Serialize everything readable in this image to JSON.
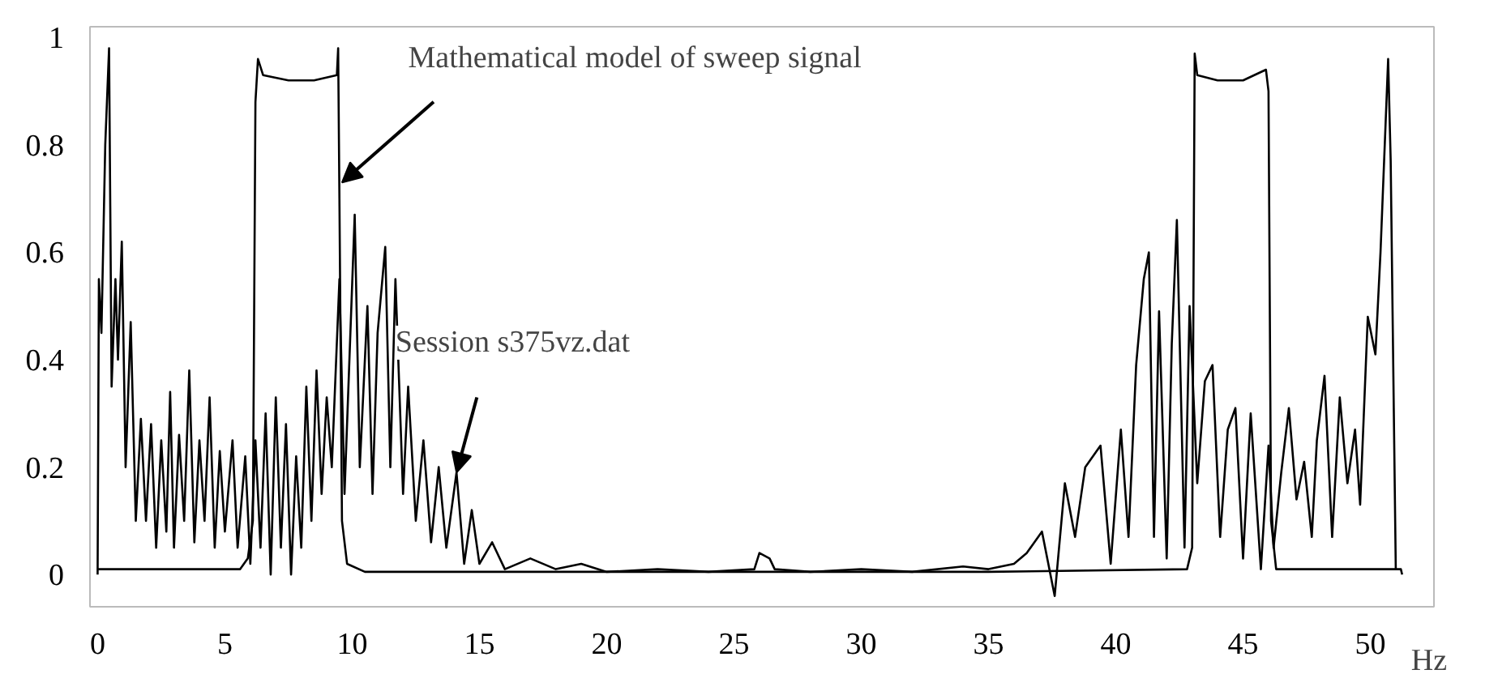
{
  "chart_data": {
    "type": "line",
    "xlabel": "Hz",
    "xlim": [
      -0.3,
      52.5
    ],
    "ylim": [
      -0.06,
      1.02
    ],
    "xticks": [
      0,
      5,
      10,
      15,
      20,
      25,
      30,
      35,
      40,
      45,
      50
    ],
    "yticks": [
      0,
      0.2,
      0.4,
      0.6,
      0.8,
      1
    ],
    "grid": false,
    "marker": "none",
    "line_style": "solid",
    "series": [
      {
        "color": "#000000",
        "x": [
          0.0,
          5.6,
          5.9,
          6.1,
          6.2,
          6.3,
          6.5,
          7.5,
          8.5,
          9.4,
          9.45,
          9.5,
          9.6,
          9.8,
          10.5,
          20,
          35,
          42.8,
          43.0,
          43.1,
          43.2,
          44,
          45,
          45.9,
          46.0,
          46.1,
          46.3,
          51.2,
          51.25
        ],
        "values": [
          0.01,
          0.01,
          0.03,
          0.1,
          0.88,
          0.96,
          0.93,
          0.92,
          0.92,
          0.93,
          0.98,
          0.7,
          0.1,
          0.02,
          0.005,
          0.005,
          0.005,
          0.01,
          0.05,
          0.97,
          0.93,
          0.92,
          0.92,
          0.94,
          0.9,
          0.1,
          0.01,
          0.01,
          0.0
        ]
      },
      {
        "color": "#000000",
        "x": [
          0.0,
          0.05,
          0.15,
          0.3,
          0.45,
          0.55,
          0.7,
          0.8,
          0.95,
          1.1,
          1.3,
          1.5,
          1.7,
          1.9,
          2.1,
          2.3,
          2.5,
          2.7,
          2.85,
          3.0,
          3.2,
          3.4,
          3.6,
          3.8,
          4.0,
          4.2,
          4.4,
          4.6,
          4.8,
          5.0,
          5.3,
          5.5,
          5.8,
          6.0,
          6.2,
          6.4,
          6.6,
          6.8,
          7.0,
          7.2,
          7.4,
          7.6,
          7.8,
          8.0,
          8.2,
          8.4,
          8.6,
          8.8,
          9.0,
          9.2,
          9.5,
          9.7,
          10.1,
          10.3,
          10.6,
          10.8,
          11.0,
          11.3,
          11.5,
          11.7,
          12.0,
          12.2,
          12.5,
          12.8,
          13.1,
          13.4,
          13.7,
          14.1,
          14.4,
          14.7,
          15.0,
          15.5,
          16,
          17,
          18,
          19,
          20,
          22,
          24,
          25.8,
          26.0,
          26.4,
          26.6,
          28,
          30,
          32,
          34,
          35,
          36,
          36.5,
          37.1,
          37.6,
          38.0,
          38.4,
          38.8,
          39.4,
          39.8,
          40.2,
          40.5,
          40.8,
          41.1,
          41.3,
          41.5,
          41.7,
          42.0,
          42.2,
          42.4,
          42.7,
          42.9,
          43.2,
          43.5,
          43.8,
          44.1,
          44.4,
          44.7,
          45.0,
          45.3,
          45.7,
          46.0,
          46.2,
          46.5,
          46.8,
          47.1,
          47.4,
          47.7,
          47.9,
          48.2,
          48.5,
          48.8,
          49.1,
          49.4,
          49.6,
          49.9,
          50.2,
          50.4,
          50.7,
          50.8,
          51.0
        ],
        "values": [
          0.0,
          0.55,
          0.45,
          0.8,
          0.98,
          0.35,
          0.55,
          0.4,
          0.62,
          0.2,
          0.47,
          0.1,
          0.29,
          0.1,
          0.28,
          0.05,
          0.25,
          0.08,
          0.34,
          0.05,
          0.26,
          0.1,
          0.38,
          0.06,
          0.25,
          0.1,
          0.33,
          0.05,
          0.23,
          0.08,
          0.25,
          0.05,
          0.22,
          0.02,
          0.25,
          0.05,
          0.3,
          0.0,
          0.33,
          0.05,
          0.28,
          0.0,
          0.22,
          0.05,
          0.35,
          0.1,
          0.38,
          0.15,
          0.33,
          0.2,
          0.55,
          0.15,
          0.67,
          0.2,
          0.5,
          0.15,
          0.45,
          0.61,
          0.2,
          0.55,
          0.15,
          0.35,
          0.1,
          0.25,
          0.06,
          0.2,
          0.05,
          0.19,
          0.02,
          0.12,
          0.02,
          0.06,
          0.01,
          0.03,
          0.01,
          0.02,
          0.005,
          0.01,
          0.005,
          0.01,
          0.04,
          0.03,
          0.01,
          0.005,
          0.01,
          0.005,
          0.015,
          0.01,
          0.02,
          0.04,
          0.08,
          -0.04,
          0.17,
          0.07,
          0.2,
          0.24,
          0.02,
          0.27,
          0.07,
          0.39,
          0.55,
          0.6,
          0.07,
          0.49,
          0.03,
          0.43,
          0.66,
          0.05,
          0.5,
          0.17,
          0.36,
          0.39,
          0.07,
          0.27,
          0.31,
          0.03,
          0.3,
          0.01,
          0.24,
          0.05,
          0.19,
          0.31,
          0.14,
          0.21,
          0.07,
          0.25,
          0.37,
          0.07,
          0.33,
          0.17,
          0.27,
          0.13,
          0.48,
          0.41,
          0.6,
          0.96,
          0.77,
          0.01
        ]
      }
    ],
    "annotations": [
      {
        "text": "Mathematical model of sweep signal",
        "x": 9.6,
        "y": 0.73
      },
      {
        "text": "Session s375vz.dat",
        "x": 14.1,
        "y": 0.19
      }
    ]
  }
}
